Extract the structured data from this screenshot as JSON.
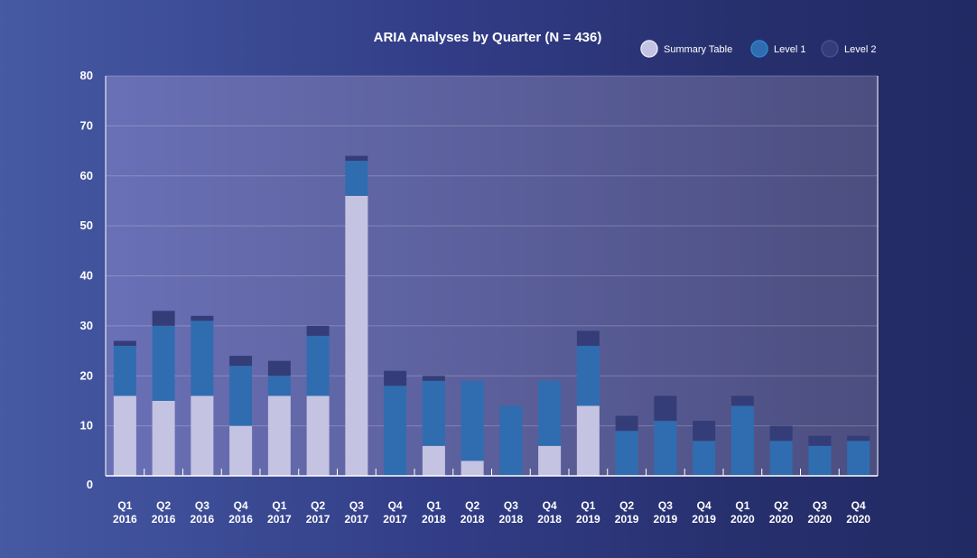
{
  "chart_data": {
    "type": "bar",
    "stacked": true,
    "title": "ARIA Analyses by Quarter (N = 436)",
    "xlabel": "",
    "ylabel": "",
    "ylim": [
      0,
      80
    ],
    "yticks": [
      "0",
      "10",
      "20",
      "30",
      "40",
      "50",
      "60",
      "70",
      "80"
    ],
    "grid": true,
    "legend_position": "top-right",
    "categories": [
      [
        "Q1",
        "2016"
      ],
      [
        "Q2",
        "2016"
      ],
      [
        "Q3",
        "2016"
      ],
      [
        "Q4",
        "2016"
      ],
      [
        "Q1",
        "2017"
      ],
      [
        "Q2",
        "2017"
      ],
      [
        "Q3",
        "2017"
      ],
      [
        "Q4",
        "2017"
      ],
      [
        "Q1",
        "2018"
      ],
      [
        "Q2",
        "2018"
      ],
      [
        "Q3",
        "2018"
      ],
      [
        "Q4",
        "2018"
      ],
      [
        "Q1",
        "2019"
      ],
      [
        "Q2",
        "2019"
      ],
      [
        "Q3",
        "2019"
      ],
      [
        "Q4",
        "2019"
      ],
      [
        "Q1",
        "2020"
      ],
      [
        "Q2",
        "2020"
      ],
      [
        "Q3",
        "2020"
      ],
      [
        "Q4",
        "2020"
      ]
    ],
    "series": [
      {
        "name": "Summary Table",
        "color": "#c5c3e2",
        "values": [
          16,
          15,
          16,
          10,
          16,
          16,
          56,
          0,
          6,
          3,
          0,
          6,
          14,
          0,
          0,
          0,
          0,
          0,
          0,
          0
        ]
      },
      {
        "name": "Level 1",
        "color": "#2f6db0",
        "values": [
          10,
          15,
          15,
          12,
          4,
          12,
          7,
          18,
          13,
          16,
          14,
          13,
          12,
          9,
          11,
          7,
          14,
          7,
          6,
          7
        ]
      },
      {
        "name": "Level 2",
        "color": "#343d77",
        "values": [
          1,
          3,
          1,
          2,
          3,
          2,
          1,
          3,
          1,
          0,
          0,
          0,
          3,
          3,
          5,
          4,
          2,
          3,
          2,
          1
        ]
      }
    ]
  }
}
